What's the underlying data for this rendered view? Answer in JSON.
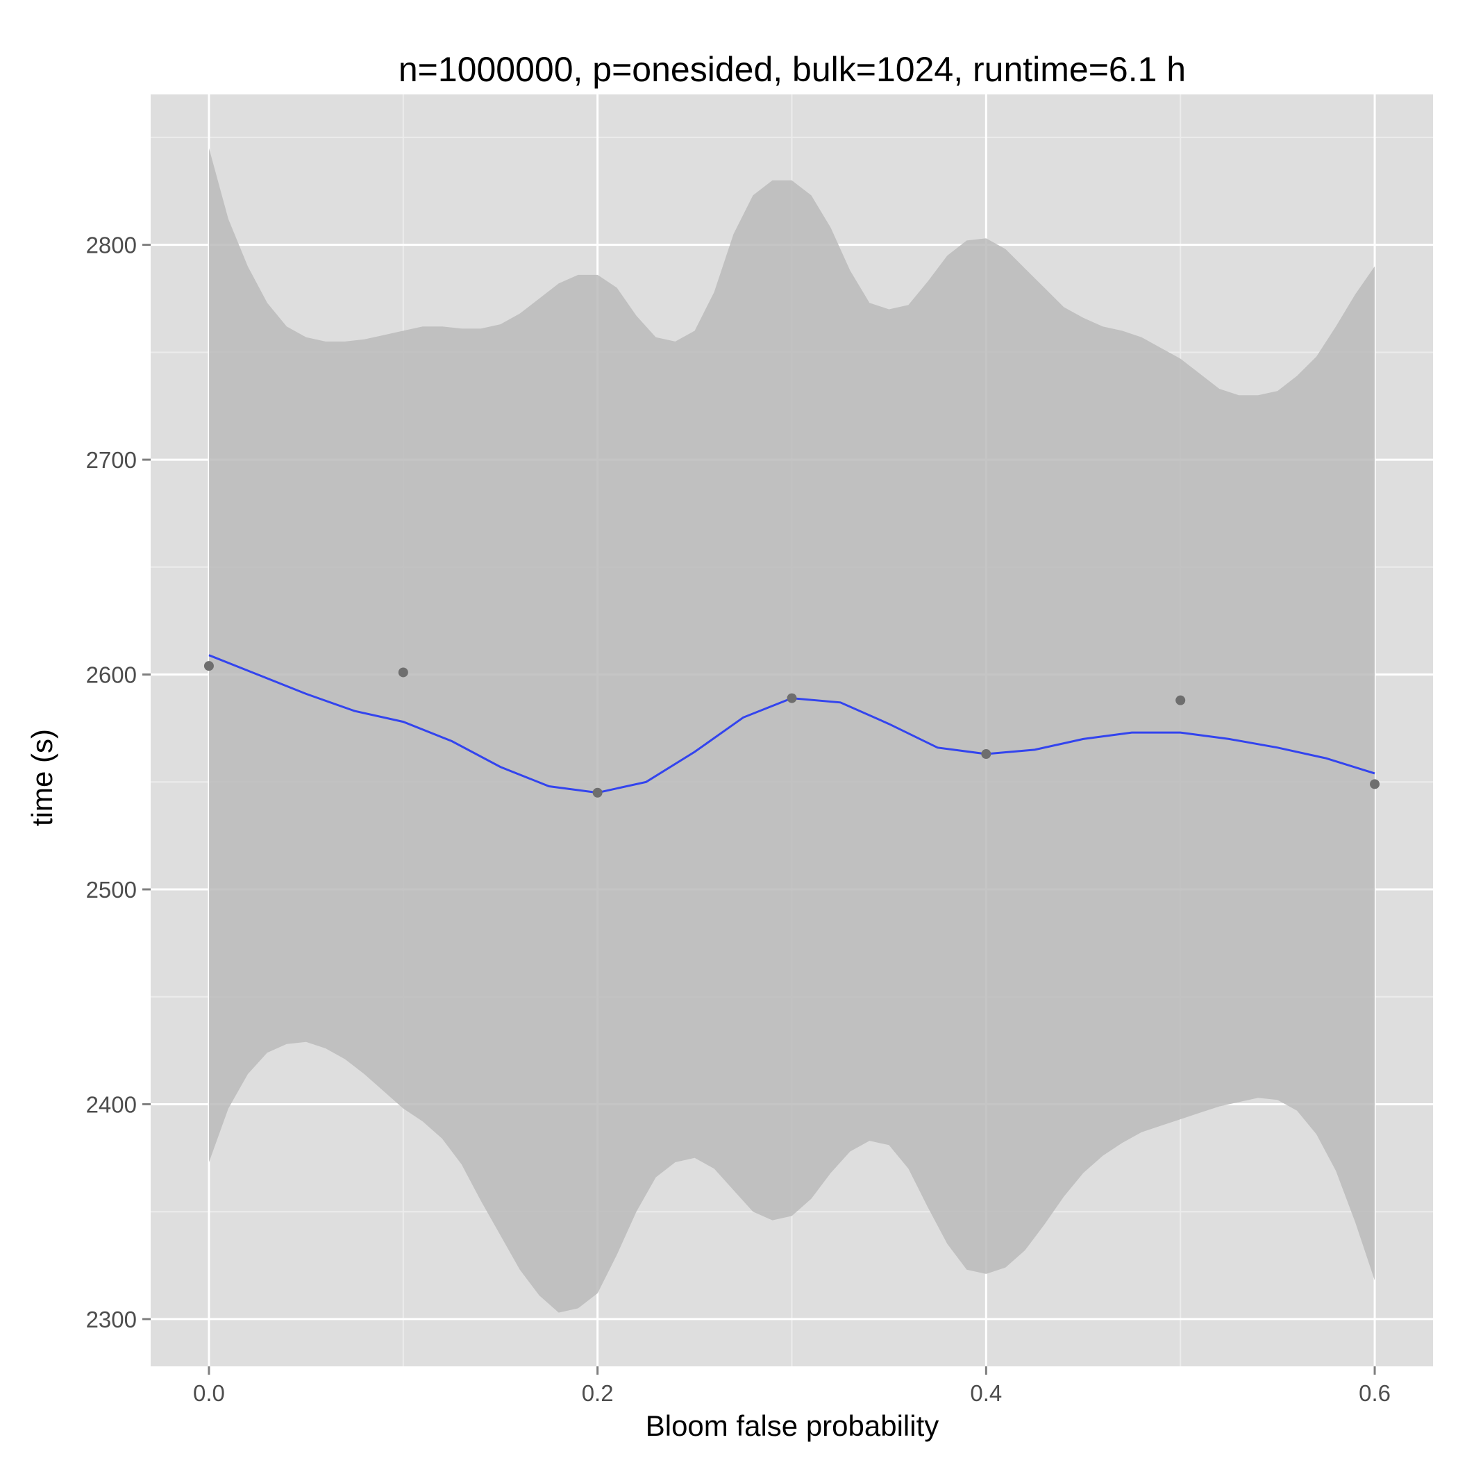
{
  "chart_data": {
    "type": "scatter",
    "title": "n=1000000, p=onesided, bulk=1024, runtime=6.1 h",
    "xlabel": "Bloom false probability",
    "ylabel": "time (s)",
    "xlim": [
      -0.03,
      0.63
    ],
    "ylim": [
      2278,
      2870
    ],
    "x_ticks": [
      0.0,
      0.2,
      0.4,
      0.6
    ],
    "x_tick_labels": [
      "0.0",
      "0.2",
      "0.4",
      "0.6"
    ],
    "x_minor_ticks": [
      0.1,
      0.3,
      0.5
    ],
    "y_ticks": [
      2300,
      2400,
      2500,
      2600,
      2700,
      2800
    ],
    "y_tick_labels": [
      "2300",
      "2400",
      "2500",
      "2600",
      "2700",
      "2800"
    ],
    "y_minor_ticks": [
      2350,
      2450,
      2550,
      2650,
      2750,
      2850
    ],
    "grid": true,
    "legend": "none",
    "colors": {
      "panel_bg": "#dedede",
      "grid_major": "#ffffff",
      "grid_minor": "#ececec",
      "ribbon": "#bbbbbb",
      "smooth_line": "#3344ee",
      "points": "#6e6e6e"
    },
    "points": {
      "x": [
        0.0,
        0.1,
        0.2,
        0.3,
        0.4,
        0.5,
        0.6
      ],
      "y": [
        2604,
        2601,
        2545,
        2589,
        2563,
        2588,
        2549
      ]
    },
    "smooth": {
      "x": [
        0.0,
        0.025,
        0.05,
        0.075,
        0.1,
        0.125,
        0.15,
        0.175,
        0.2,
        0.225,
        0.25,
        0.275,
        0.3,
        0.325,
        0.35,
        0.375,
        0.4,
        0.425,
        0.45,
        0.475,
        0.5,
        0.525,
        0.55,
        0.575,
        0.6
      ],
      "y": [
        2609,
        2600,
        2591,
        2583,
        2578,
        2569,
        2557,
        2548,
        2545,
        2550,
        2564,
        2580,
        2589,
        2587,
        2577,
        2566,
        2563,
        2565,
        2570,
        2573,
        2573,
        2570,
        2566,
        2561,
        2554
      ]
    },
    "ribbon_upper": {
      "x": [
        0.0,
        0.01,
        0.02,
        0.03,
        0.04,
        0.05,
        0.06,
        0.07,
        0.08,
        0.09,
        0.1,
        0.11,
        0.12,
        0.13,
        0.14,
        0.15,
        0.16,
        0.17,
        0.18,
        0.19,
        0.2,
        0.21,
        0.22,
        0.23,
        0.24,
        0.25,
        0.26,
        0.27,
        0.28,
        0.29,
        0.3,
        0.31,
        0.32,
        0.33,
        0.34,
        0.35,
        0.36,
        0.37,
        0.38,
        0.39,
        0.4,
        0.41,
        0.42,
        0.43,
        0.44,
        0.45,
        0.46,
        0.47,
        0.48,
        0.49,
        0.5,
        0.51,
        0.52,
        0.53,
        0.54,
        0.55,
        0.56,
        0.57,
        0.58,
        0.59,
        0.6
      ],
      "y": [
        2845,
        2812,
        2790,
        2773,
        2762,
        2757,
        2755,
        2755,
        2756,
        2758,
        2760,
        2762,
        2762,
        2761,
        2761,
        2763,
        2768,
        2775,
        2782,
        2786,
        2786,
        2780,
        2767,
        2757,
        2755,
        2760,
        2778,
        2805,
        2823,
        2830,
        2830,
        2823,
        2808,
        2788,
        2773,
        2770,
        2772,
        2783,
        2795,
        2802,
        2803,
        2798,
        2789,
        2780,
        2771,
        2766,
        2762,
        2760,
        2757,
        2752,
        2747,
        2740,
        2733,
        2730,
        2730,
        2732,
        2739,
        2748,
        2762,
        2777,
        2790
      ]
    },
    "ribbon_lower": {
      "x": [
        0.0,
        0.01,
        0.02,
        0.03,
        0.04,
        0.05,
        0.06,
        0.07,
        0.08,
        0.09,
        0.1,
        0.11,
        0.12,
        0.13,
        0.14,
        0.15,
        0.16,
        0.17,
        0.18,
        0.19,
        0.2,
        0.21,
        0.22,
        0.23,
        0.24,
        0.25,
        0.26,
        0.27,
        0.28,
        0.29,
        0.3,
        0.31,
        0.32,
        0.33,
        0.34,
        0.35,
        0.36,
        0.37,
        0.38,
        0.39,
        0.4,
        0.41,
        0.42,
        0.43,
        0.44,
        0.45,
        0.46,
        0.47,
        0.48,
        0.49,
        0.5,
        0.51,
        0.52,
        0.53,
        0.54,
        0.55,
        0.56,
        0.57,
        0.58,
        0.59,
        0.6
      ],
      "y": [
        2373,
        2398,
        2414,
        2424,
        2428,
        2429,
        2426,
        2421,
        2414,
        2406,
        2398,
        2392,
        2384,
        2372,
        2355,
        2339,
        2323,
        2311,
        2303,
        2305,
        2312,
        2330,
        2350,
        2366,
        2373,
        2375,
        2370,
        2360,
        2350,
        2346,
        2348,
        2356,
        2368,
        2378,
        2383,
        2381,
        2370,
        2352,
        2335,
        2323,
        2321,
        2324,
        2332,
        2344,
        2357,
        2368,
        2376,
        2382,
        2387,
        2390,
        2393,
        2396,
        2399,
        2401,
        2403,
        2402,
        2397,
        2386,
        2369,
        2345,
        2318
      ]
    }
  }
}
